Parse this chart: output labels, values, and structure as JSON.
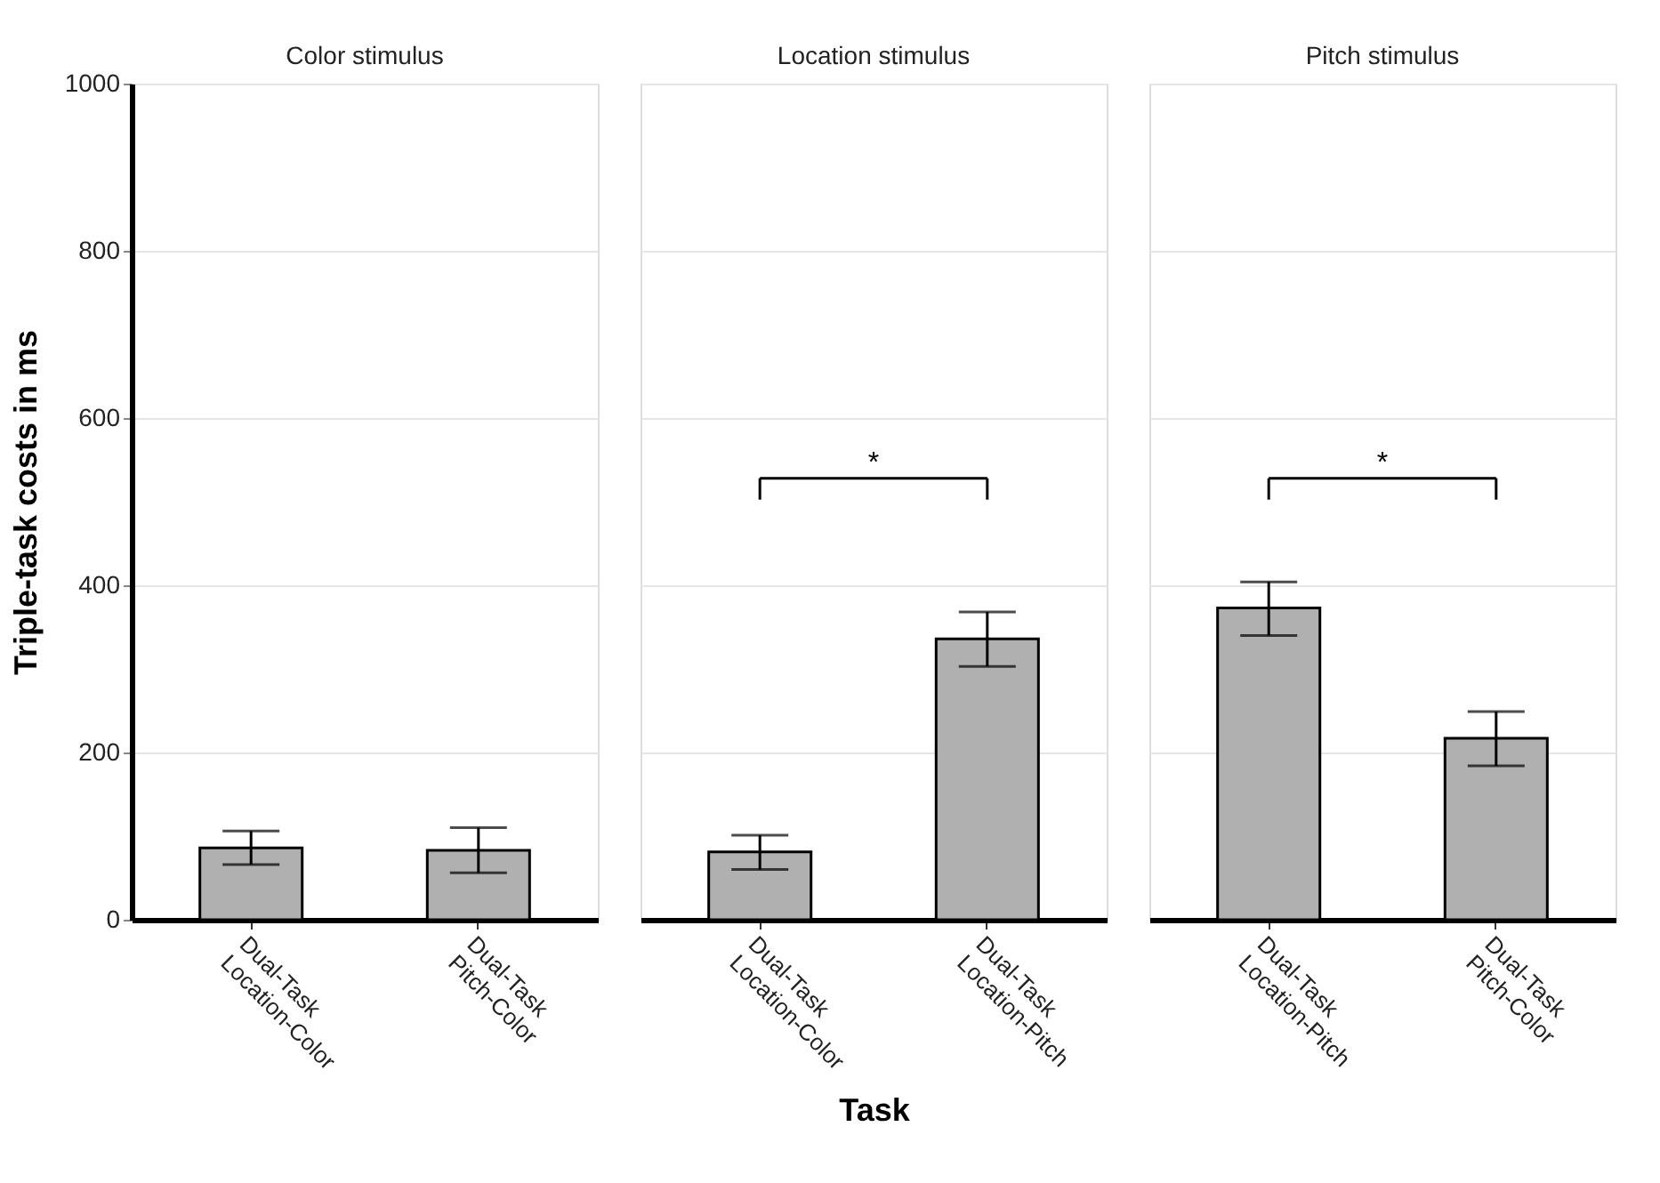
{
  "chart_data": [
    {
      "type": "bar",
      "title": "Color stimulus",
      "ylabel": "Triple-task costs in ms",
      "categories": [
        "Dual-Task Location-Color",
        "Dual-Task Pitch-Color"
      ],
      "values": [
        86,
        83
      ],
      "errors": [
        [
          66,
          106
        ],
        [
          56,
          110
        ]
      ],
      "color": "#b0b0b0",
      "ylim": [
        0,
        1000
      ],
      "yticks": [
        0,
        200,
        400,
        600,
        800,
        {
          "value": 1000,
          "label": "1000"
        }
      ],
      "grid": "y"
    },
    {
      "type": "bar",
      "title": "Location  stimulus",
      "xlabel": "Task",
      "categories": [
        "Dual-Task Location-Color",
        "Dual-Task Location-Pitch"
      ],
      "values": [
        81,
        336
      ],
      "errors": [
        [
          60,
          101
        ],
        [
          303,
          368
        ]
      ],
      "color": "#b0b0b0",
      "ylim": [
        0,
        1000
      ],
      "yticks": [
        0,
        200,
        400,
        600,
        800,
        1000
      ],
      "grid": "y",
      "tick_labels": "x",
      "annotations": [
        "*"
      ]
    },
    {
      "type": "bar",
      "title": "Pitch  stimulus",
      "categories": [
        "Dual-Task Location-Pitch",
        "Dual-Task Pitch-Color"
      ],
      "values": [
        373,
        217
      ],
      "errors": [
        [
          340,
          404
        ],
        [
          184,
          249
        ]
      ],
      "color": "#b0b0b0",
      "ylim": [
        0,
        1000
      ],
      "yticks": [
        0,
        200,
        400,
        600,
        800,
        1000
      ],
      "grid": "y",
      "tick_labels": "x",
      "annotations": [
        "*"
      ]
    }
  ]
}
